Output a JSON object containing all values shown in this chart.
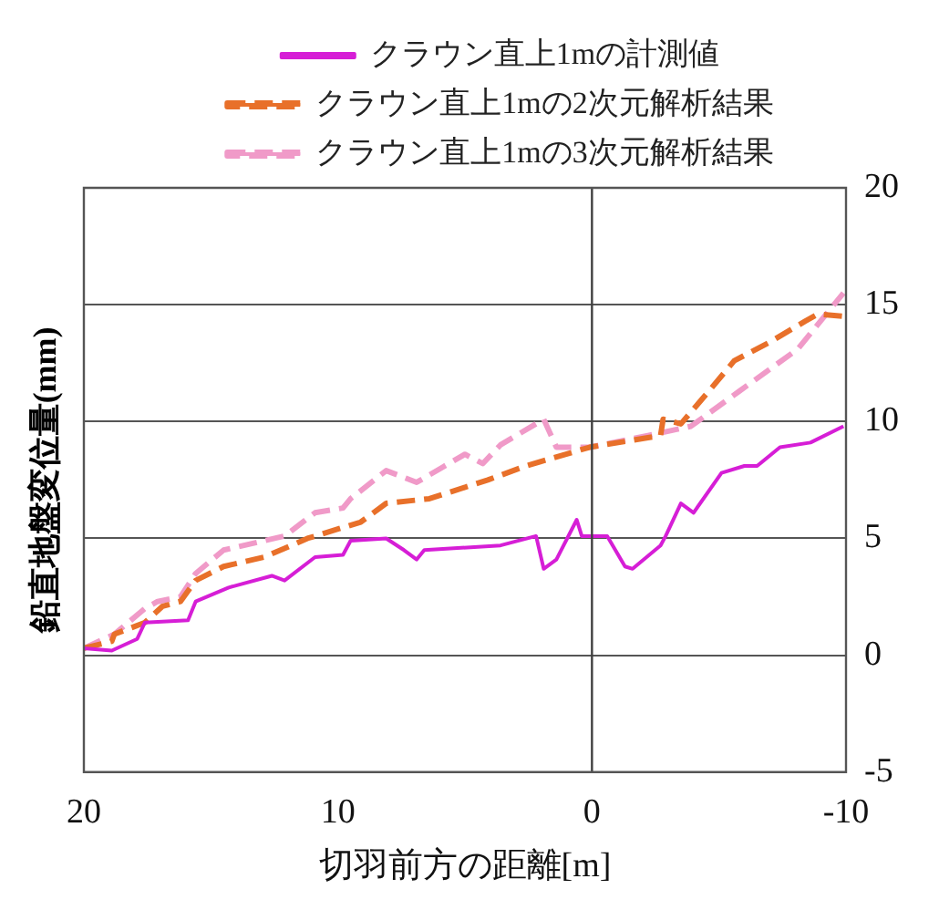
{
  "chart_data": {
    "type": "line",
    "xlabel": "切羽前方の距離[m]",
    "ylabel": "鉛直地盤変位量(mm)",
    "xlim": [
      20,
      -10
    ],
    "xticks": [
      20,
      10,
      0,
      -10
    ],
    "ylim": [
      -5,
      20
    ],
    "yticks": [
      -5,
      0,
      5,
      10,
      15,
      20
    ],
    "grid": "y",
    "legend": "top",
    "marker": "none",
    "ref_lines": [
      {
        "axis": "x",
        "value": 0,
        "color": "#404040"
      }
    ],
    "series": [
      {
        "name": "クラウン直上1mの計測値",
        "color": "#d61ed6",
        "line_style": "solid",
        "x": [
          20,
          18.9,
          17.9,
          17.6,
          15.9,
          15.6,
          14.3,
          12.6,
          12.1,
          10.9,
          9.8,
          9.5,
          8.1,
          7.4,
          6.9,
          6.6,
          3.6,
          2.2,
          1.9,
          1.4,
          0.6,
          0.4,
          -0.6,
          -1.3,
          -1.6,
          -2.7,
          -2.9,
          -3.5,
          -4.0,
          -5.1,
          -6.0,
          -6.5,
          -7.4,
          -8.6,
          -9.9
        ],
        "values": [
          0.3,
          0.2,
          0.7,
          1.4,
          1.5,
          2.3,
          2.9,
          3.4,
          3.2,
          4.2,
          4.3,
          4.9,
          5.0,
          4.5,
          4.1,
          4.5,
          4.7,
          5.1,
          3.7,
          4.1,
          5.8,
          5.1,
          5.1,
          3.8,
          3.7,
          4.7,
          5.1,
          6.5,
          6.1,
          7.8,
          8.1,
          8.1,
          8.9,
          9.1,
          9.8
        ]
      },
      {
        "name": "クラウン直上1mの2次元解析結果",
        "color": "#e8702a",
        "line_style": "dashed",
        "x": [
          20,
          18.9,
          18.8,
          17.6,
          16.9,
          16.2,
          15.6,
          14.5,
          12.9,
          11.2,
          10.0,
          9.1,
          8.1,
          6.4,
          4.1,
          2.6,
          0.1,
          -2.7,
          -2.8,
          -3.5,
          -4.6,
          -5.6,
          -7.0,
          -8.4,
          -8.9,
          -9.9
        ],
        "values": [
          0.3,
          0.6,
          0.9,
          1.4,
          2.1,
          2.3,
          3.2,
          3.8,
          4.2,
          5.0,
          5.4,
          5.7,
          6.5,
          6.7,
          7.5,
          8.1,
          8.9,
          9.4,
          10.1,
          9.9,
          11.3,
          12.6,
          13.4,
          14.3,
          14.6,
          14.5
        ]
      },
      {
        "name": "クラウン直上1mの3次元解析結果",
        "color": "#f09ac8",
        "line_style": "dashed",
        "x": [
          20,
          18.8,
          17.6,
          17.1,
          16.2,
          15.6,
          14.5,
          12.9,
          12.1,
          10.9,
          9.8,
          9.5,
          8.1,
          6.9,
          5.0,
          4.3,
          3.6,
          1.9,
          1.4,
          0.1,
          -2.2,
          -3.9,
          -5.8,
          -8.1,
          -9.9
        ],
        "values": [
          0.3,
          0.9,
          2.0,
          2.3,
          2.5,
          3.5,
          4.5,
          4.9,
          5.1,
          6.1,
          6.3,
          6.7,
          7.9,
          7.4,
          8.6,
          8.2,
          9.0,
          10.1,
          8.9,
          8.9,
          9.4,
          9.8,
          11.3,
          13.1,
          15.5
        ]
      }
    ]
  }
}
